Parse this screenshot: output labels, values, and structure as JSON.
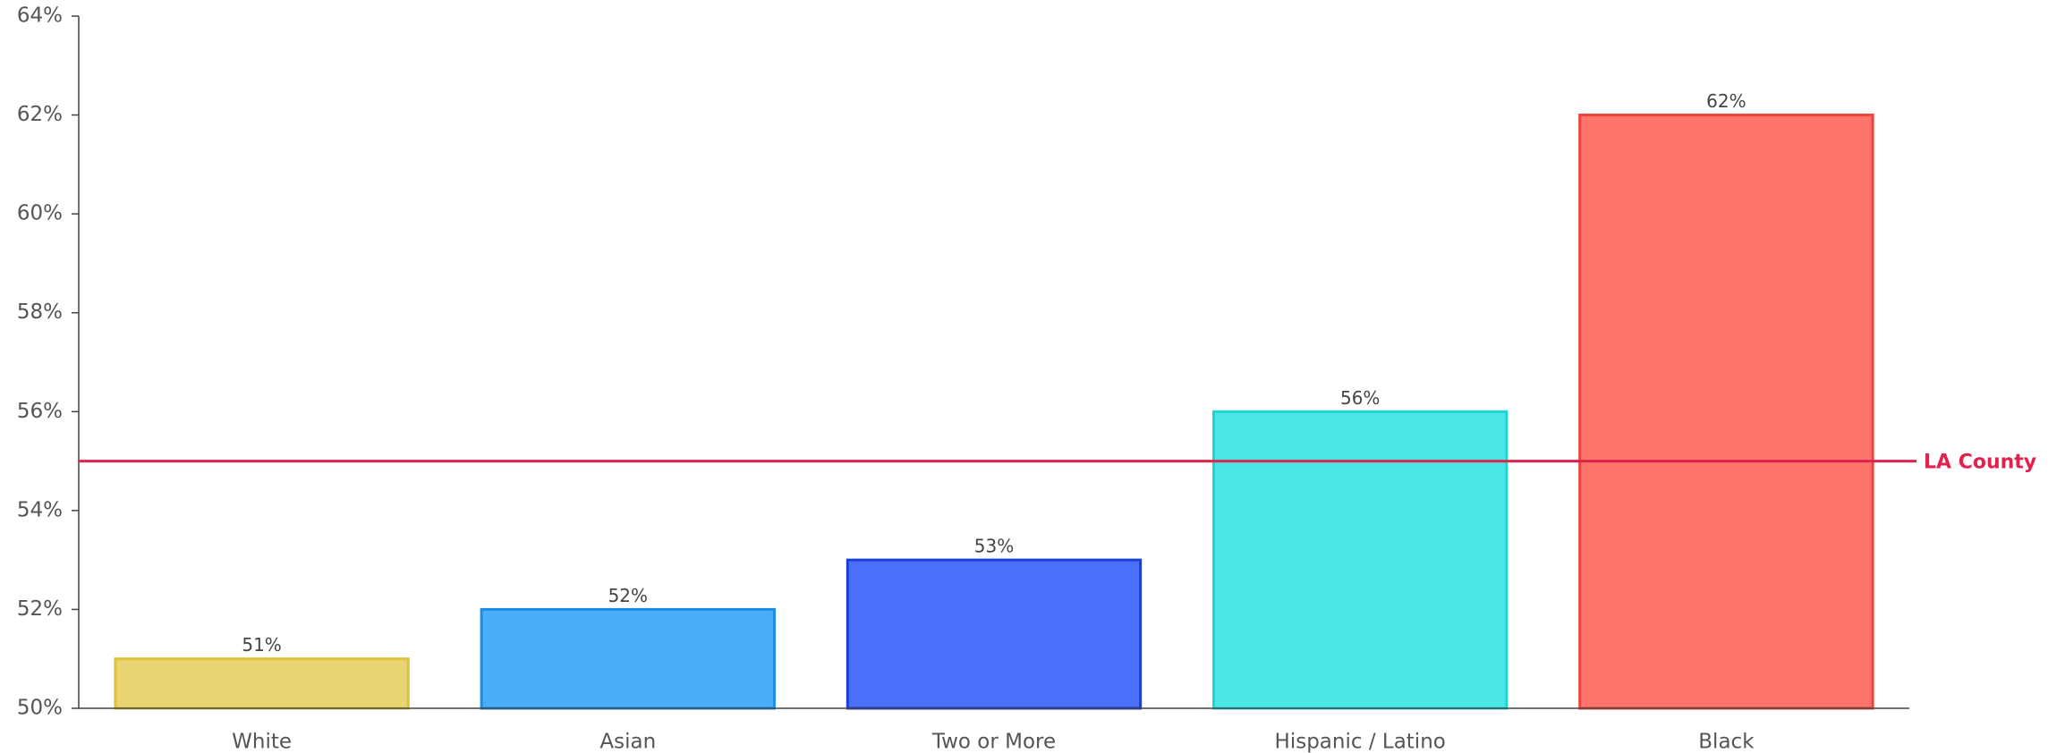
{
  "chart_data": {
    "type": "bar",
    "categories": [
      "White",
      "Asian",
      "Two or More",
      "Hispanic / Latino",
      "Black"
    ],
    "values": [
      51,
      52,
      53,
      56,
      62
    ],
    "value_labels": [
      "51%",
      "52%",
      "53%",
      "56%",
      "62%"
    ],
    "colors": [
      "#e8d472",
      "#4aaef8",
      "#4a70fb",
      "#4de6e6",
      "#ff756b"
    ],
    "edge_colors": [
      "#dcc23a",
      "#1a8fe8",
      "#1a3fd8",
      "#1ed4d4",
      "#f0413a"
    ],
    "ylim": [
      50,
      64
    ],
    "yticks": [
      {
        "value": 50,
        "label": "50%"
      },
      {
        "value": 52,
        "label": "52%"
      },
      {
        "value": 54,
        "label": "54%"
      },
      {
        "value": 56,
        "label": "56%"
      },
      {
        "value": 58,
        "label": "58%"
      },
      {
        "value": 60,
        "label": "60%"
      },
      {
        "value": 62,
        "label": "62%"
      },
      {
        "value": 64,
        "label": "64%"
      }
    ],
    "reference_lines": [
      {
        "name": "LA County",
        "value": 55,
        "color": "#e0234e"
      }
    ]
  }
}
